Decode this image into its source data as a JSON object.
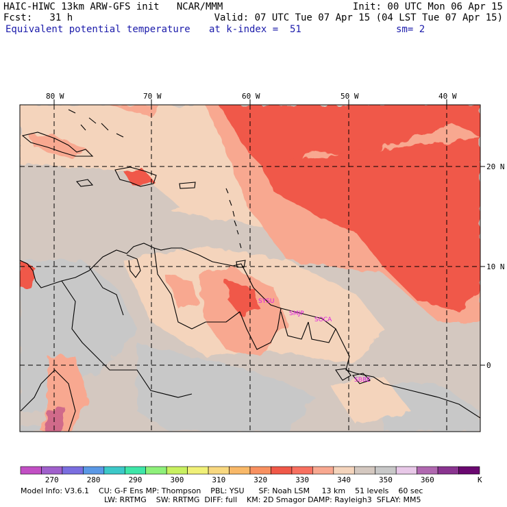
{
  "header": {
    "line1_left": "HAIC-HIWC 13km ARW-GFS init   NCAR/MMM",
    "line1_right": "Init: 00 UTC Mon 06 Apr 15",
    "line2_left": "Fcst:   31 h",
    "line2_right": "Valid: 07 UTC Tue 07 Apr 15 (04 LST Tue 07 Apr 15)",
    "line3_left": "Equivalent potential temperature",
    "line3_mid": "at k-index =  51",
    "line3_right": "sm= 2"
  },
  "axes": {
    "lon_labels": [
      "80 W",
      "70 W",
      "60 W",
      "50 W",
      "40 W"
    ],
    "lat_labels": [
      "20 N",
      "10 N",
      "0"
    ]
  },
  "stations": [
    "SYSU",
    "SMJP",
    "SOCA",
    "SBBE"
  ],
  "colorbar": {
    "labels": [
      "270",
      "280",
      "290",
      "300",
      "310",
      "320",
      "330",
      "340",
      "350",
      "360"
    ],
    "unit": "K",
    "colors": [
      "#c24fc4",
      "#a060cc",
      "#7a6ee0",
      "#5a98e6",
      "#3cc8c8",
      "#3ee6a8",
      "#8ef07a",
      "#c8f060",
      "#f0f078",
      "#f8d880",
      "#f8b868",
      "#f89060",
      "#f05848",
      "#f87060",
      "#f8a890",
      "#f4d4bc",
      "#d4c8c0",
      "#c8c8c8",
      "#e8c8e8",
      "#b068b0",
      "#8a3490",
      "#6a0870"
    ]
  },
  "model_info": {
    "line1": "Model Info: V3.6.1    CU: G-F Ens MP: Thompson    PBL: YSU      SF: Noah LSM     13 km    51 levels    60 sec",
    "line2": "LW: RRTMG    SW: RRTMG  DIFF: full    KM: 2D Smagor DAMP: Rayleigh3  SFLAY: MM5"
  }
}
